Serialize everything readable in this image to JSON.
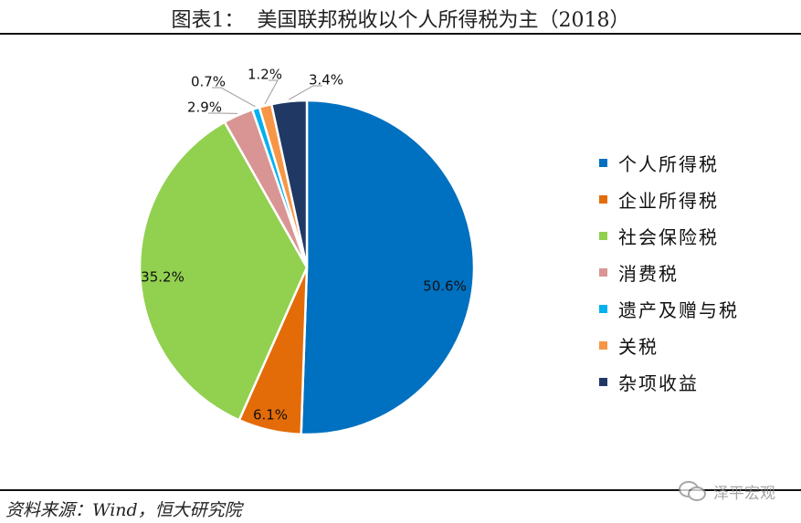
{
  "title": "图表1：  美国联邦税收以个人所得税为主（2018）",
  "source": "资料来源：Wind，恒大研究院",
  "watermark": {
    "text": "泽平宏观",
    "icon": "wechat-icon"
  },
  "chart_data": {
    "type": "pie",
    "title": "图表1：  美国联邦税收以个人所得税为主（2018）",
    "legend_position": "right",
    "slices": [
      {
        "name": "个人所得税",
        "value": 50.6,
        "label": "50.6%",
        "color": "#0070C0"
      },
      {
        "name": "企业所得税",
        "value": 6.1,
        "label": "6.1%",
        "color": "#E36C09"
      },
      {
        "name": "社会保险税",
        "value": 35.2,
        "label": "35.2%",
        "color": "#92D050"
      },
      {
        "name": "消费税",
        "value": 2.9,
        "label": "2.9%",
        "color": "#D99594"
      },
      {
        "name": "遗产及赠与税",
        "value": 0.7,
        "label": "0.7%",
        "color": "#00B0F0"
      },
      {
        "name": "关税",
        "value": 1.2,
        "label": "1.2%",
        "color": "#F79646"
      },
      {
        "name": "杂项收益",
        "value": 3.4,
        "label": "3.4%",
        "color": "#1F3864"
      }
    ]
  }
}
